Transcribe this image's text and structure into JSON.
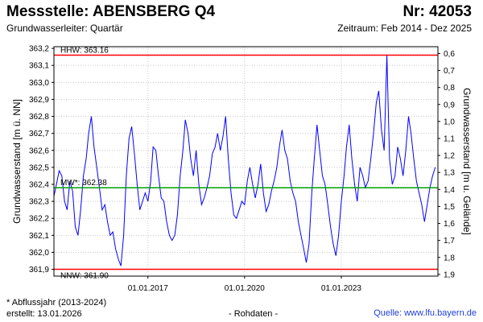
{
  "header": {
    "title": "Messstelle: ABENSBERG Q4",
    "station_number": "Nr: 42053",
    "aquifer": "Grundwasserleiter: Quartär",
    "period": "Zeitraum: Feb 2014 - Dez 2025"
  },
  "footer": {
    "footnote": "* Abflussjahr (2013-2024)",
    "created": "erstellt:  13.01.2026",
    "raw_data": "- Rohdaten -",
    "source": "Quelle: www.lfu.bayern.de"
  },
  "colors": {
    "series": "#0000ff",
    "hhw": "#ff0000",
    "nnw": "#ff0000",
    "mw": "#00a000",
    "grid": "#c8c8c8",
    "source_link": "#1f3fd6"
  },
  "chart_data": {
    "type": "line",
    "title": "",
    "xlabel": "",
    "ylabel": "Grundwasserstand [m ü. NN]",
    "ylabel_right": "Grundwasserstand [m u. Gelände]",
    "ylim": [
      361.86,
      363.21
    ],
    "xlim": [
      "2014-02-01",
      "2025-12-31"
    ],
    "y_ticks": [
      "361,9",
      "362,0",
      "362,1",
      "362,2",
      "362,3",
      "362,4",
      "362,5",
      "362,6",
      "362,7",
      "362,8",
      "362,9",
      "363,0",
      "363,1",
      "363,2"
    ],
    "y_ticks_right": [
      "0,6",
      "0,7",
      "0,8",
      "0,9",
      "1,0",
      "1,1",
      "1,2",
      "1,3",
      "1,4",
      "1,5",
      "1,6",
      "1,7",
      "1,8",
      "1,9"
    ],
    "x_ticks": [
      {
        "date": "2017-01-01",
        "label": "01.01.2017"
      },
      {
        "date": "2020-01-01",
        "label": "01.01.2020"
      },
      {
        "date": "2023-01-01",
        "label": "01.01.2023"
      }
    ],
    "grid": true,
    "reference_lines": [
      {
        "key": "hhw",
        "label": "HHW: 363.16",
        "value": 363.16
      },
      {
        "key": "mw",
        "label": "MW*: 362.38",
        "value": 362.38
      },
      {
        "key": "nnw",
        "label": "NNW: 361.90",
        "value": 361.9
      }
    ],
    "series": [
      {
        "name": "",
        "points": [
          [
            "2014-02-01",
            362.33
          ],
          [
            "2014-03-01",
            362.4
          ],
          [
            "2014-04-01",
            362.48
          ],
          [
            "2014-05-01",
            362.45
          ],
          [
            "2014-06-01",
            362.3
          ],
          [
            "2014-07-01",
            362.25
          ],
          [
            "2014-08-01",
            362.42
          ],
          [
            "2014-09-01",
            362.36
          ],
          [
            "2014-10-01",
            362.15
          ],
          [
            "2014-11-01",
            362.1
          ],
          [
            "2014-12-01",
            362.25
          ],
          [
            "2015-01-01",
            362.45
          ],
          [
            "2015-02-01",
            362.55
          ],
          [
            "2015-03-01",
            362.7
          ],
          [
            "2015-04-01",
            362.8
          ],
          [
            "2015-05-01",
            362.62
          ],
          [
            "2015-06-01",
            362.5
          ],
          [
            "2015-07-01",
            362.38
          ],
          [
            "2015-08-01",
            362.25
          ],
          [
            "2015-09-01",
            362.28
          ],
          [
            "2015-10-01",
            362.18
          ],
          [
            "2015-11-01",
            362.1
          ],
          [
            "2015-12-01",
            362.12
          ],
          [
            "2016-01-01",
            362.02
          ],
          [
            "2016-02-01",
            361.96
          ],
          [
            "2016-03-01",
            361.92
          ],
          [
            "2016-04-01",
            362.1
          ],
          [
            "2016-05-01",
            362.45
          ],
          [
            "2016-06-01",
            362.67
          ],
          [
            "2016-07-01",
            362.74
          ],
          [
            "2016-08-01",
            362.58
          ],
          [
            "2016-09-01",
            362.4
          ],
          [
            "2016-10-01",
            362.25
          ],
          [
            "2016-11-01",
            362.3
          ],
          [
            "2016-12-01",
            362.35
          ],
          [
            "2017-01-01",
            362.3
          ],
          [
            "2017-02-01",
            362.42
          ],
          [
            "2017-03-01",
            362.62
          ],
          [
            "2017-04-01",
            362.6
          ],
          [
            "2017-05-01",
            362.45
          ],
          [
            "2017-06-01",
            362.32
          ],
          [
            "2017-07-01",
            362.3
          ],
          [
            "2017-08-01",
            362.18
          ],
          [
            "2017-09-01",
            362.1
          ],
          [
            "2017-10-01",
            362.07
          ],
          [
            "2017-11-01",
            362.1
          ],
          [
            "2017-12-01",
            362.22
          ],
          [
            "2018-01-01",
            362.45
          ],
          [
            "2018-02-01",
            362.6
          ],
          [
            "2018-03-01",
            362.78
          ],
          [
            "2018-04-01",
            362.7
          ],
          [
            "2018-05-01",
            362.55
          ],
          [
            "2018-06-01",
            362.45
          ],
          [
            "2018-07-01",
            362.6
          ],
          [
            "2018-08-01",
            362.4
          ],
          [
            "2018-09-01",
            362.28
          ],
          [
            "2018-10-01",
            362.32
          ],
          [
            "2018-11-01",
            362.38
          ],
          [
            "2018-12-01",
            362.45
          ],
          [
            "2019-01-01",
            362.58
          ],
          [
            "2019-02-01",
            362.62
          ],
          [
            "2019-03-01",
            362.7
          ],
          [
            "2019-04-01",
            362.6
          ],
          [
            "2019-05-01",
            362.68
          ],
          [
            "2019-06-01",
            362.8
          ],
          [
            "2019-07-01",
            362.55
          ],
          [
            "2019-08-01",
            362.35
          ],
          [
            "2019-09-01",
            362.22
          ],
          [
            "2019-10-01",
            362.2
          ],
          [
            "2019-11-01",
            362.25
          ],
          [
            "2019-12-01",
            362.3
          ],
          [
            "2020-01-01",
            362.28
          ],
          [
            "2020-02-01",
            362.42
          ],
          [
            "2020-03-01",
            362.5
          ],
          [
            "2020-04-01",
            362.4
          ],
          [
            "2020-05-01",
            362.32
          ],
          [
            "2020-06-01",
            362.4
          ],
          [
            "2020-07-01",
            362.52
          ],
          [
            "2020-08-01",
            362.35
          ],
          [
            "2020-09-01",
            362.24
          ],
          [
            "2020-10-01",
            362.28
          ],
          [
            "2020-11-01",
            362.36
          ],
          [
            "2020-12-01",
            362.42
          ],
          [
            "2021-01-01",
            362.5
          ],
          [
            "2021-02-01",
            362.63
          ],
          [
            "2021-03-01",
            362.72
          ],
          [
            "2021-04-01",
            362.6
          ],
          [
            "2021-05-01",
            362.55
          ],
          [
            "2021-06-01",
            362.42
          ],
          [
            "2021-07-01",
            362.35
          ],
          [
            "2021-08-01",
            362.3
          ],
          [
            "2021-09-01",
            362.18
          ],
          [
            "2021-10-01",
            362.1
          ],
          [
            "2021-11-01",
            362.02
          ],
          [
            "2021-12-01",
            361.94
          ],
          [
            "2022-01-01",
            362.05
          ],
          [
            "2022-02-01",
            362.35
          ],
          [
            "2022-03-01",
            362.55
          ],
          [
            "2022-04-01",
            362.75
          ],
          [
            "2022-05-01",
            362.6
          ],
          [
            "2022-06-01",
            362.45
          ],
          [
            "2022-07-01",
            362.4
          ],
          [
            "2022-08-01",
            362.28
          ],
          [
            "2022-09-01",
            362.15
          ],
          [
            "2022-10-01",
            362.05
          ],
          [
            "2022-11-01",
            361.98
          ],
          [
            "2022-12-01",
            362.1
          ],
          [
            "2023-01-01",
            362.3
          ],
          [
            "2023-02-01",
            362.45
          ],
          [
            "2023-03-01",
            362.62
          ],
          [
            "2023-04-01",
            362.75
          ],
          [
            "2023-05-01",
            362.55
          ],
          [
            "2023-06-01",
            362.4
          ],
          [
            "2023-07-01",
            362.3
          ],
          [
            "2023-08-01",
            362.5
          ],
          [
            "2023-09-01",
            362.45
          ],
          [
            "2023-10-01",
            362.38
          ],
          [
            "2023-11-01",
            362.42
          ],
          [
            "2023-12-01",
            362.55
          ],
          [
            "2024-01-01",
            362.7
          ],
          [
            "2024-02-01",
            362.88
          ],
          [
            "2024-03-01",
            362.95
          ],
          [
            "2024-04-01",
            362.72
          ],
          [
            "2024-05-01",
            362.6
          ],
          [
            "2024-06-01",
            363.16
          ],
          [
            "2024-07-01",
            362.55
          ],
          [
            "2024-08-01",
            362.4
          ],
          [
            "2024-09-01",
            362.45
          ],
          [
            "2024-10-01",
            362.62
          ],
          [
            "2024-11-01",
            362.55
          ],
          [
            "2024-12-01",
            362.45
          ],
          [
            "2025-01-01",
            362.6
          ],
          [
            "2025-02-01",
            362.8
          ],
          [
            "2025-03-01",
            362.7
          ],
          [
            "2025-04-01",
            362.55
          ],
          [
            "2025-05-01",
            362.42
          ],
          [
            "2025-06-01",
            362.35
          ],
          [
            "2025-07-01",
            362.28
          ],
          [
            "2025-08-01",
            362.18
          ],
          [
            "2025-09-01",
            362.28
          ],
          [
            "2025-10-01",
            362.38
          ],
          [
            "2025-11-01",
            362.45
          ],
          [
            "2025-12-01",
            362.5
          ]
        ]
      }
    ]
  }
}
